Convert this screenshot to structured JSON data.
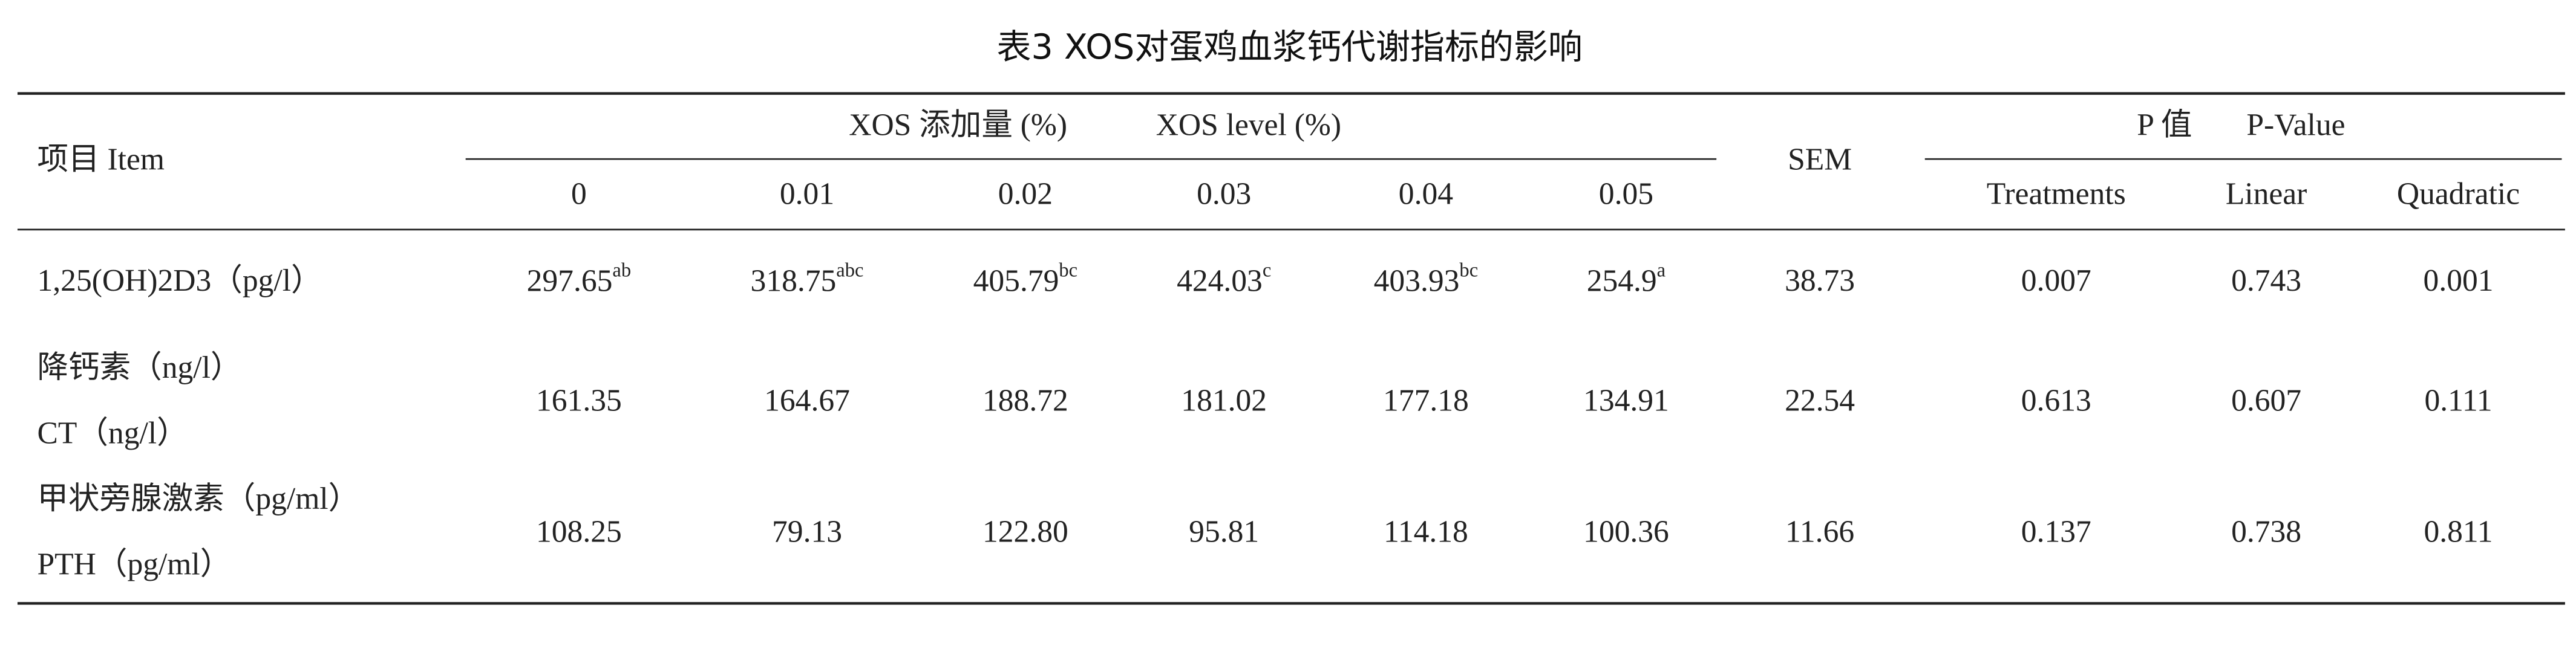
{
  "title": "表3 XOS对蛋鸡血浆钙代谢指标的影响",
  "header": {
    "item": "项目 Item",
    "group_cn": "XOS 添加量 (%)",
    "group_en": "XOS level (%)",
    "levels": [
      "0",
      "0.01",
      "0.02",
      "0.03",
      "0.04",
      "0.05"
    ],
    "sem": "SEM",
    "p_cn": "P 值",
    "p_en": "P-Value",
    "p_columns": [
      "Treatments",
      "Linear",
      "Quadratic"
    ]
  },
  "rows": [
    {
      "label": [
        "1,25(OH)2D3（pg/l）"
      ],
      "values": [
        "297.65",
        "318.75",
        "405.79",
        "424.03",
        "403.93",
        "254.9"
      ],
      "sup": [
        "ab",
        "abc",
        "bc",
        "c",
        "bc",
        "a"
      ],
      "sem": "38.73",
      "p": [
        "0.007",
        "0.743",
        "0.001"
      ]
    },
    {
      "label": [
        "降钙素（ng/l）",
        "CT（ng/l）"
      ],
      "values": [
        "161.35",
        "164.67",
        "188.72",
        "181.02",
        "177.18",
        "134.91"
      ],
      "sem": "22.54",
      "p": [
        "0.613",
        "0.607",
        "0.111"
      ]
    },
    {
      "label": [
        "甲状旁腺激素（pg/ml）",
        "PTH（pg/ml）"
      ],
      "values": [
        "108.25",
        "79.13",
        "122.80",
        "95.81",
        "114.18",
        "100.36"
      ],
      "sem": "11.66",
      "p": [
        "0.137",
        "0.738",
        "0.811"
      ]
    }
  ]
}
